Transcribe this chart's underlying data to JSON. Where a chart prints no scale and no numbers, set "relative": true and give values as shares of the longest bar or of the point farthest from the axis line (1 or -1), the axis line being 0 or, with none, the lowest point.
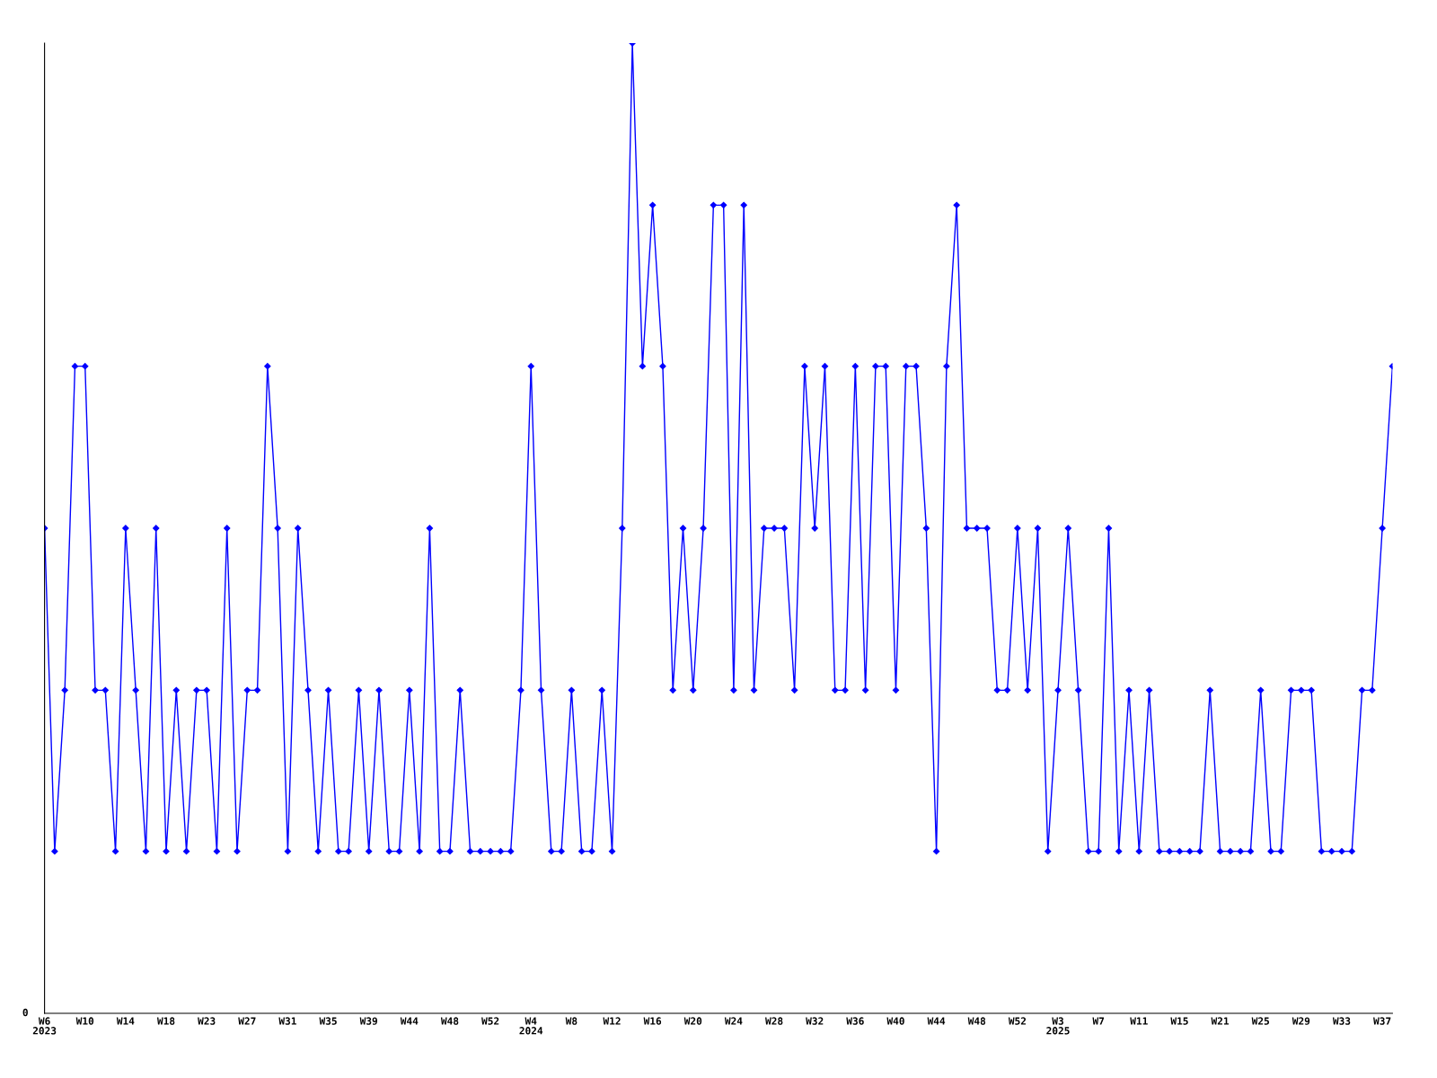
{
  "chart_data": {
    "type": "line",
    "relative": true,
    "marker": "diamond",
    "line_style": "solid",
    "grid": false,
    "legend": false,
    "categories": [
      "W6\n2023",
      null,
      null,
      null,
      "W10",
      null,
      null,
      null,
      "W14",
      null,
      null,
      null,
      "W18",
      null,
      null,
      null,
      "W23",
      null,
      null,
      null,
      "W27",
      null,
      null,
      null,
      "W31",
      null,
      null,
      null,
      "W35",
      null,
      null,
      null,
      "W39",
      null,
      null,
      null,
      "W44",
      null,
      null,
      null,
      "W48",
      null,
      null,
      null,
      "W52",
      null,
      null,
      null,
      "W4\n2024",
      null,
      null,
      null,
      "W8",
      null,
      null,
      null,
      "W12",
      null,
      null,
      null,
      "W16",
      null,
      null,
      null,
      "W20",
      null,
      null,
      null,
      "W24",
      null,
      null,
      null,
      "W28",
      null,
      null,
      null,
      "W32",
      null,
      null,
      null,
      "W36",
      null,
      null,
      null,
      "W40",
      null,
      null,
      null,
      "W44",
      null,
      null,
      null,
      "W48",
      null,
      null,
      null,
      "W52",
      null,
      null,
      null,
      "W3\n2025",
      null,
      null,
      null,
      "W7",
      null,
      null,
      null,
      "W11",
      null,
      null,
      null,
      "W15",
      null,
      null,
      null,
      "W21",
      null,
      null,
      null,
      "W25",
      null,
      null,
      null,
      "W29",
      null,
      null,
      null,
      "W33",
      null,
      null,
      null,
      "W37",
      null
    ],
    "series": [
      {
        "color": "#0000ff",
        "values": [
          0.5,
          0.167,
          0.333,
          0.667,
          0.667,
          0.333,
          0.333,
          0.167,
          0.5,
          0.333,
          0.167,
          0.5,
          0.167,
          0.333,
          0.167,
          0.333,
          0.333,
          0.167,
          0.5,
          0.167,
          0.333,
          0.333,
          0.667,
          0.5,
          0.167,
          0.5,
          0.333,
          0.167,
          0.333,
          0.167,
          0.167,
          0.333,
          0.167,
          0.333,
          0.167,
          0.167,
          0.333,
          0.167,
          0.5,
          0.167,
          0.167,
          0.333,
          0.167,
          0.167,
          0.167,
          0.167,
          0.167,
          0.333,
          0.667,
          0.333,
          0.167,
          0.167,
          0.333,
          0.167,
          0.167,
          0.333,
          0.167,
          0.5,
          1,
          0.667,
          0.833,
          0.667,
          0.333,
          0.5,
          0.333,
          0.5,
          0.833,
          0.833,
          0.333,
          0.833,
          0.333,
          0.5,
          0.5,
          0.5,
          0.333,
          0.667,
          0.5,
          0.667,
          0.333,
          0.333,
          0.667,
          0.333,
          0.667,
          0.667,
          0.333,
          0.667,
          0.667,
          0.5,
          0.167,
          0.667,
          0.833,
          0.5,
          0.5,
          0.5,
          0.333,
          0.333,
          0.5,
          0.333,
          0.5,
          0.167,
          0.333,
          0.5,
          0.333,
          0.167,
          0.167,
          0.5,
          0.167,
          0.333,
          0.167,
          0.333,
          0.167,
          0.167,
          0.167,
          0.167,
          0.167,
          0.333,
          0.167,
          0.167,
          0.167,
          0.167,
          0.333,
          0.167,
          0.167,
          0.333,
          0.333,
          0.333,
          0.167,
          0.167,
          0.167,
          0.167,
          0.333,
          0.333,
          0.5,
          0.667
        ]
      }
    ],
    "annotations": [
      "0"
    ]
  }
}
